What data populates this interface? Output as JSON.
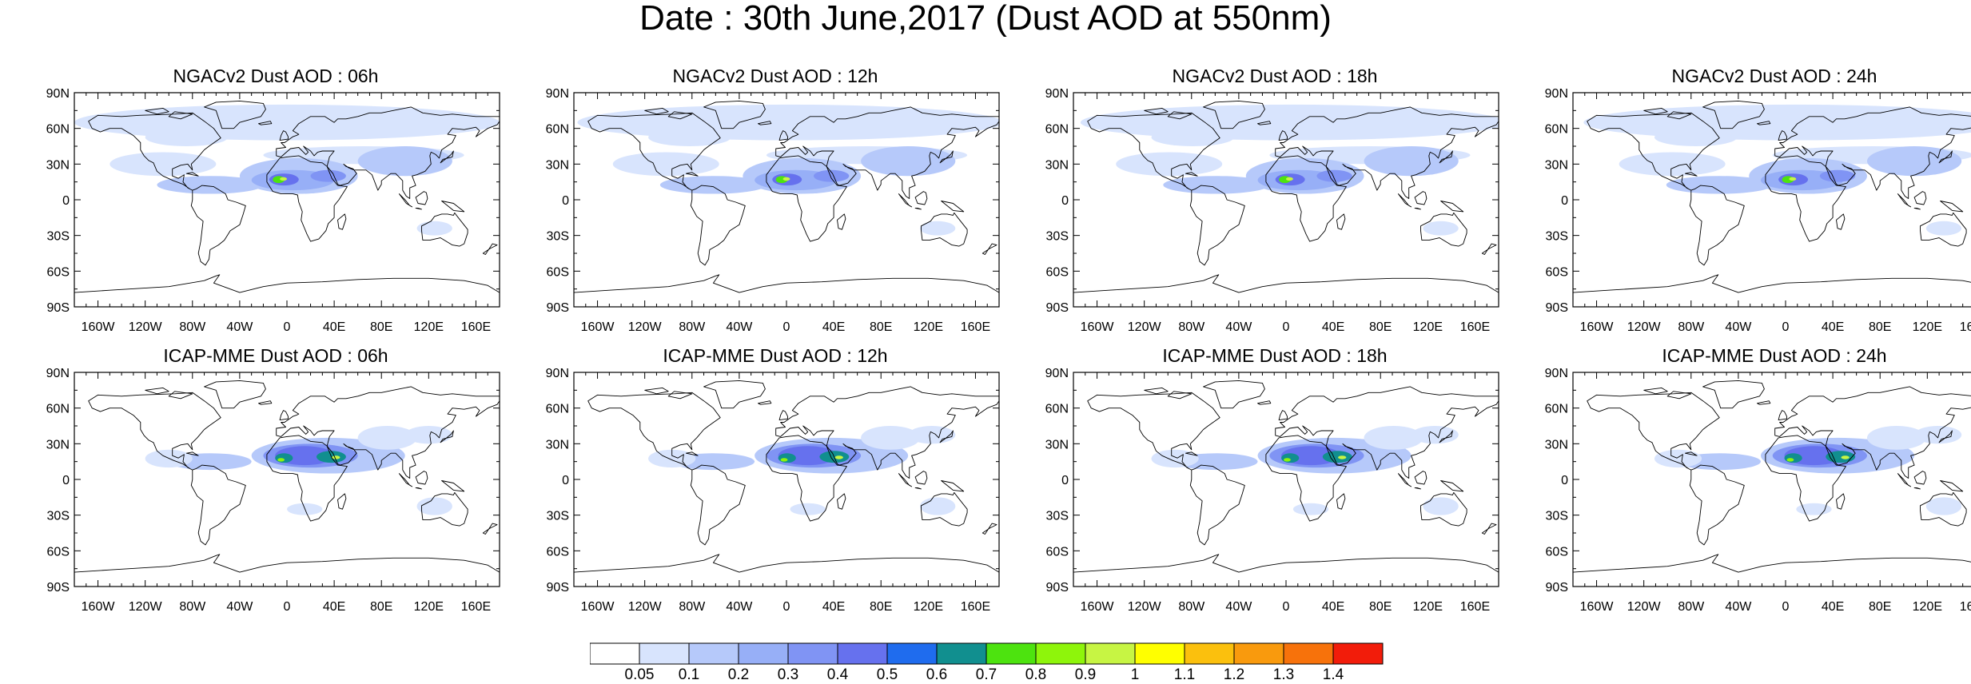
{
  "title": "Date : 30th June,2017 (Dust AOD at 550nm)",
  "axes": {
    "lat_ticks": [
      "90N",
      "60N",
      "30N",
      "0",
      "30S",
      "60S",
      "90S"
    ],
    "lon_ticks": [
      "160W",
      "120W",
      "80W",
      "40W",
      "0",
      "40E",
      "80E",
      "120E",
      "160E"
    ]
  },
  "panels": [
    {
      "title": "NGACv2 Dust AOD : 06h",
      "model": "NGACv2",
      "hour": 6
    },
    {
      "title": "NGACv2 Dust AOD : 12h",
      "model": "NGACv2",
      "hour": 12
    },
    {
      "title": "NGACv2 Dust AOD : 18h",
      "model": "NGACv2",
      "hour": 18
    },
    {
      "title": "NGACv2 Dust AOD : 24h",
      "model": "NGACv2",
      "hour": 24
    },
    {
      "title": "ICAP-MME Dust AOD : 06h",
      "model": "ICAP-MME",
      "hour": 6
    },
    {
      "title": "ICAP-MME Dust AOD : 12h",
      "model": "ICAP-MME",
      "hour": 12
    },
    {
      "title": "ICAP-MME Dust AOD : 18h",
      "model": "ICAP-MME",
      "hour": 18
    },
    {
      "title": "ICAP-MME Dust AOD : 24h",
      "model": "ICAP-MME",
      "hour": 24
    }
  ],
  "colorbar": {
    "labels": [
      "0.05",
      "0.1",
      "0.2",
      "0.3",
      "0.4",
      "0.5",
      "0.6",
      "0.7",
      "0.8",
      "0.9",
      "1",
      "1.1",
      "1.2",
      "1.3",
      "1.4"
    ],
    "colors": [
      "#ffffff",
      "#d8e4fd",
      "#b6c9fa",
      "#97aff7",
      "#8094f4",
      "#6671ee",
      "#1f6cee",
      "#118f8f",
      "#4de30f",
      "#8ef50b",
      "#c7f543",
      "#ffff00",
      "#fbc00d",
      "#f99a0d",
      "#f7720b",
      "#f21c0a"
    ]
  }
}
